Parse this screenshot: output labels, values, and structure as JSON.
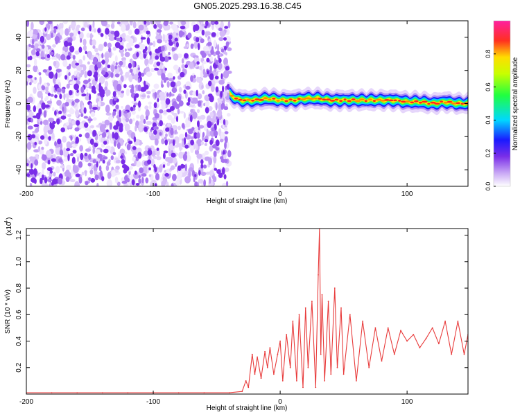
{
  "title": "GN05.2025.293.16.38.C45",
  "colorbar": {
    "label": "Normalized spectral amplitude",
    "ticks": [
      "0.0",
      "0.2",
      "0.4",
      "0.6",
      "0.8"
    ],
    "tick_values": [
      0.0,
      0.2,
      0.4,
      0.6,
      0.8
    ],
    "range": [
      0,
      1
    ]
  },
  "colors": {
    "snr_line": "#e83a3a",
    "noise": "#7a2ee8",
    "frame": "#000000"
  },
  "chart_data": [
    {
      "type": "heatmap",
      "xlabel": "Height of straight line (km)",
      "ylabel": "Frequency (Hz)",
      "xlim": [
        -200,
        148
      ],
      "ylim": [
        -50,
        50
      ],
      "xticks": [
        -200,
        -100,
        0,
        100
      ],
      "xtick_labels": [
        "-200",
        "-100",
        "0",
        "100"
      ],
      "yticks": [
        -40,
        -20,
        0,
        20,
        40
      ],
      "ytick_labels": [
        "-40",
        "-20",
        "0",
        "20",
        "40"
      ],
      "noise_region_x": [
        -200,
        -40
      ],
      "signal_band": {
        "x": [
          -40,
          -35,
          -30,
          -20,
          -10,
          0,
          10,
          20,
          30,
          40,
          50,
          60,
          70,
          80,
          90,
          100,
          110,
          120,
          130,
          140,
          148
        ],
        "center_freq": [
          6,
          3,
          2,
          2,
          3,
          2,
          2,
          3,
          3,
          2,
          2,
          2,
          2,
          2,
          2,
          1,
          1,
          0,
          1,
          0,
          0
        ],
        "peak_amplitude": [
          0.5,
          0.7,
          0.8,
          0.85,
          0.9,
          0.9,
          0.95,
          0.95,
          0.95,
          0.9,
          0.95,
          0.9,
          0.95,
          0.95,
          0.95,
          0.9,
          0.9,
          0.95,
          0.9,
          0.85,
          0.9
        ]
      }
    },
    {
      "type": "line",
      "xlabel": "Height of straight line (km)",
      "ylabel": "SNR (10 * v/v)",
      "scale_label": "(x10",
      "scale_exp": "4",
      "y_multiplier": 10000,
      "xlim": [
        -200,
        148
      ],
      "ylim": [
        0,
        1.25
      ],
      "xticks": [
        -200,
        -100,
        0,
        100
      ],
      "xtick_labels": [
        "-200",
        "-100",
        "0",
        "100"
      ],
      "yticks": [
        0.2,
        0.4,
        0.6,
        0.8,
        1.0,
        1.2
      ],
      "ytick_labels": [
        "0.2",
        "0.4",
        "0.6",
        "0.8",
        "1.0",
        "1.2"
      ],
      "series": [
        {
          "x": [
            -200,
            -180,
            -160,
            -140,
            -120,
            -100,
            -80,
            -60,
            -40,
            -30,
            -27,
            -25,
            -22,
            -20,
            -18,
            -15,
            -12,
            -10,
            -8,
            -5,
            -2,
            0,
            2,
            5,
            8,
            10,
            13,
            15,
            18,
            20,
            22,
            25,
            28,
            30,
            31,
            32,
            33,
            35,
            38,
            40,
            43,
            45,
            48,
            50,
            55,
            60,
            65,
            70,
            75,
            80,
            85,
            90,
            95,
            100,
            105,
            110,
            115,
            120,
            125,
            130,
            135,
            140,
            145,
            148
          ],
          "y": [
            0.01,
            0.01,
            0.01,
            0.01,
            0.01,
            0.01,
            0.01,
            0.01,
            0.01,
            0.02,
            0.1,
            0.05,
            0.3,
            0.15,
            0.28,
            0.12,
            0.32,
            0.2,
            0.35,
            0.15,
            0.3,
            0.4,
            0.1,
            0.45,
            0.2,
            0.55,
            0.1,
            0.6,
            0.05,
            0.65,
            0.2,
            0.7,
            0.05,
            0.9,
            1.25,
            0.3,
            0.75,
            0.1,
            0.7,
            0.15,
            0.8,
            0.2,
            0.65,
            0.15,
            0.6,
            0.1,
            0.55,
            0.2,
            0.5,
            0.25,
            0.5,
            0.3,
            0.48,
            0.4,
            0.45,
            0.35,
            0.42,
            0.5,
            0.38,
            0.55,
            0.3,
            0.55,
            0.3,
            0.45
          ]
        }
      ]
    }
  ]
}
